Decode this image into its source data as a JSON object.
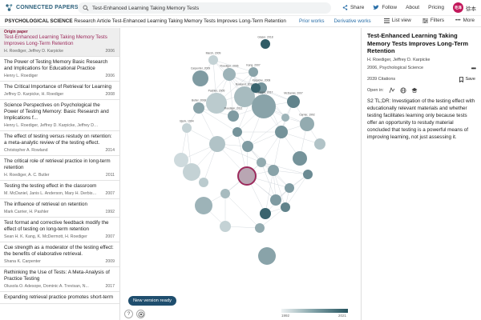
{
  "header": {
    "logo_text": "CONNECTED PAPERS",
    "search_value": "Test-Enhanced Learning Taking Memory Tests",
    "actions": {
      "share": "Share",
      "follow": "Follow",
      "about": "About",
      "pricing": "Pricing"
    },
    "user": {
      "avatar_text": "毛泽",
      "name": "徐本"
    }
  },
  "subheader": {
    "field": "PSYCHOLOGICAL SCIENCE",
    "article_title": "Research Article Test-Enhanced Learning Taking Memory Tests Improves Long-Term Retention",
    "prior_works": "Prior works",
    "derivative_works": "Derivative works",
    "list_view": "List view",
    "filters": "Filters",
    "more": "More"
  },
  "papers": [
    {
      "origin_label": "Origin paper",
      "title": "Test-Enhanced Learning Taking Memory Tests Improves Long-Term Retention",
      "authors": "H. Roediger, Jeffrey D. Karpicke",
      "year": "2006"
    },
    {
      "title": "The Power of Testing Memory Basic Research and Implications for Educational Practice",
      "authors": "Henry L. Roediger",
      "year": "2006"
    },
    {
      "title": "The Critical Importance of Retrieval for Learning",
      "authors": "Jeffrey D. Karpicke, H. Roediger",
      "year": "2008"
    },
    {
      "title": "Science Perspectives on Psychological the Power of Testing Memory: Basic Research and Implications f...",
      "authors": "Henry L. Roediger, Jeffrey D. Karpicke, Jeffrey D Is, Karpicke",
      "year": ""
    },
    {
      "title": "The effect of testing versus restudy on retention: a meta-analytic review of the testing effect.",
      "authors": "Christopher A. Rowland",
      "year": "2014"
    },
    {
      "title": "The critical role of retrieval practice in long-term retention",
      "authors": "H. Roediger, A. C. Butler",
      "year": "2011"
    },
    {
      "title": "Testing the testing effect in the classroom",
      "authors": "M. McDaniel, Janis L. Anderson, Mary H. Derbish, Nova...",
      "year": "2007"
    },
    {
      "title": "The influence of retrieval on retention",
      "authors": "Mark Carrier, H. Pashler",
      "year": "1992"
    },
    {
      "title": "Test format and corrective feedback modify the effect of testing on long-term retention",
      "authors": "Sean H. K. Kang, K. McDermott, H. Roediger",
      "year": "2007"
    },
    {
      "title": "Cue strength as a moderator of the testing effect: the benefits of elaborative retrieval.",
      "authors": "Shana K. Carpenter",
      "year": "2009"
    },
    {
      "title": "Rethinking the Use of Tests: A Meta-Analysis of Practice Testing",
      "authors": "Olusola O. Adesope, Dominic A. Trevisan, N...",
      "year": "2017"
    },
    {
      "title": "Expanding retrieval practice promotes short-term",
      "authors": "",
      "year": ""
    }
  ],
  "graph": {
    "node_labels": [
      "Glaser, 2018",
      "Marsh, 2009",
      "Kang, 2007",
      "Carpenter, 2009",
      "Roediger, 2006",
      "Karpicke, 2008",
      "Rowland, 2014",
      "McDaniel, 2007",
      "Butler, 2008",
      "Pashler, 2005",
      "Adesope, 2017",
      "Carrier, 1992",
      "Roediger, 2011",
      "Bjork, 1994"
    ],
    "version_button": "New version ready",
    "help_button": "?",
    "legend_min": "1992",
    "legend_max": "2021",
    "colors": {
      "origin": "#9c2a5c",
      "dark_node": "#26545f",
      "light_node": "#dfe6e8"
    }
  },
  "detail": {
    "title": "Test-Enhanced Learning Taking Memory Tests Improves Long-Term Retention",
    "authors": "H. Roediger, Jeffrey D. Karpicke",
    "venue": "2006, Psychological Science",
    "citations": "2039 Citations",
    "save": "Save",
    "open_in": "Open in:",
    "tldr": "S2 TL;DR: Investigation of the testing effect with educationally relevant materials and whether testing facilitates learning only because tests offer an opportunity to restudy material concluded that testing is a powerful means of improving learning, not just assessing it."
  }
}
